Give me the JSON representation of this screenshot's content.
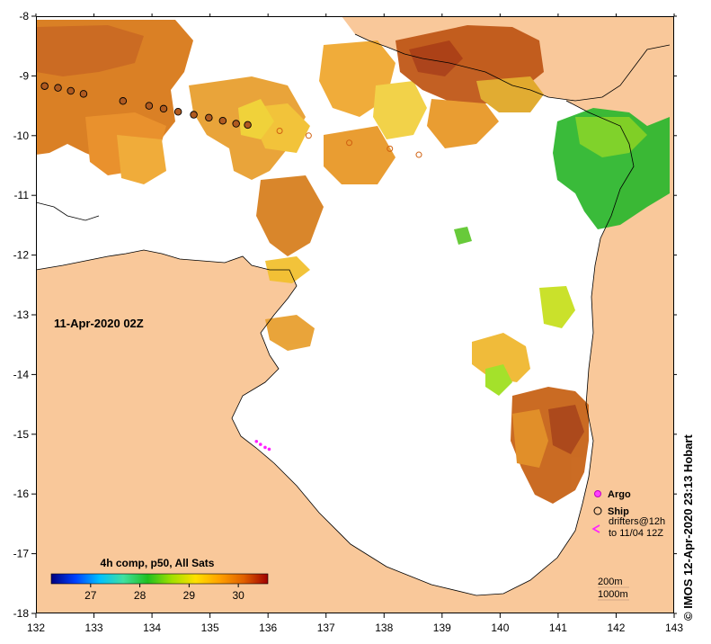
{
  "map": {
    "date_label": "11-Apr-2020 02Z",
    "credit": "© IMOS 12-Apr-2020 23:13 Hobart",
    "land_color": "#f9c89a",
    "water_color": "#ffffff",
    "lon_ticks": [
      "132",
      "133",
      "134",
      "135",
      "136",
      "137",
      "138",
      "139",
      "140",
      "141",
      "142",
      "143"
    ],
    "lat_ticks": [
      "-8",
      "-9",
      "-10",
      "-11",
      "-12",
      "-13",
      "-14",
      "-15",
      "-16",
      "-17",
      "-18"
    ]
  },
  "legend": {
    "argo_label": "Argo",
    "ship_label": "Ship",
    "drifters_label_1": "drifters@12h",
    "drifters_label_2": "to 11/04 12Z",
    "contour_200": "200m",
    "contour_1000": "1000m"
  },
  "colorbar": {
    "title": "4h comp, p50, All Sats",
    "tick_labels": [
      "27",
      "28",
      "29",
      "30"
    ],
    "colors": [
      "#00007f",
      "#0040ff",
      "#00c0ff",
      "#40e0a0",
      "#20c020",
      "#a0e000",
      "#ffe000",
      "#ffa000",
      "#e06000",
      "#a00000"
    ]
  },
  "chart_data": {
    "type": "heatmap",
    "quantity": "sea surface temperature",
    "x_range": [
      132,
      143
    ],
    "y_range": [
      -18,
      -8
    ],
    "colorbar_range": [
      26.2,
      30.6
    ],
    "ship_track": [
      {
        "lon": 132.15,
        "lat": -9.17
      },
      {
        "lon": 132.38,
        "lat": -9.2
      },
      {
        "lon": 132.6,
        "lat": -9.25
      },
      {
        "lon": 132.82,
        "lat": -9.3
      },
      {
        "lon": 133.5,
        "lat": -9.42
      },
      {
        "lon": 133.95,
        "lat": -9.5
      },
      {
        "lon": 134.2,
        "lat": -9.55
      },
      {
        "lon": 134.45,
        "lat": -9.6
      },
      {
        "lon": 134.72,
        "lat": -9.65
      },
      {
        "lon": 134.98,
        "lat": -9.7
      },
      {
        "lon": 135.22,
        "lat": -9.75
      },
      {
        "lon": 135.45,
        "lat": -9.8
      },
      {
        "lon": 135.65,
        "lat": -9.82
      }
    ],
    "ship_track_faint": [
      {
        "lon": 136.2,
        "lat": -9.92
      },
      {
        "lon": 136.7,
        "lat": -10.0
      },
      {
        "lon": 137.4,
        "lat": -10.12
      },
      {
        "lon": 138.1,
        "lat": -10.22
      },
      {
        "lon": 138.6,
        "lat": -10.32
      }
    ],
    "drifter_track": [
      {
        "lon": 135.8,
        "lat": -15.12
      },
      {
        "lon": 135.87,
        "lat": -15.17
      },
      {
        "lon": 135.95,
        "lat": -15.22
      },
      {
        "lon": 136.02,
        "lat": -15.25
      }
    ]
  }
}
